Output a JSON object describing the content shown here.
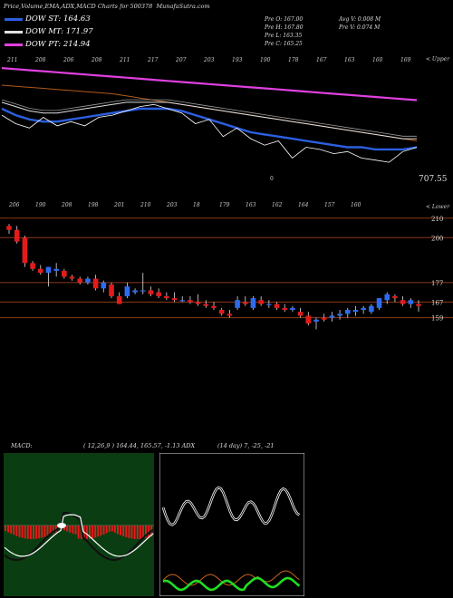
{
  "title": "Price,Volume,EMA,ADX,MACD Charts for 500378",
  "site": "MunafaSutra.com",
  "legend": [
    {
      "label": "DOW ST: 164.63",
      "color": "#2c5fe0"
    },
    {
      "label": "DOW MT: 171.97",
      "color": "#e0e0e0"
    },
    {
      "label": "DOW PT: 214.94",
      "color": "#e040e0"
    }
  ],
  "stats": {
    "prev_open": "Pre   O: 167.00",
    "prev_high": "Pre   H: 167.80",
    "prev_low": "Pre   L: 163.35",
    "prev_close": "Pre   C: 165.25",
    "avg_vol": "Avg V: 0.008   M",
    "prev_vol": "Pre   V: 0.074   M"
  },
  "panel_labels": {
    "upper": "< Upper",
    "lower": "< Lower"
  },
  "ema_value_label": "707.55",
  "ema_top_numbers": [
    "211",
    "208",
    "206",
    "208",
    "211",
    "217",
    "207",
    "203",
    "193",
    "190",
    "178",
    "167",
    "163",
    "160",
    "169"
  ],
  "ema_low_number": "0",
  "price_top_numbers": [
    "206",
    "190",
    "208",
    "198",
    "201",
    "210",
    "203",
    "18",
    "179",
    "163",
    "162",
    "164",
    "157",
    "160"
  ],
  "price_levels": [
    {
      "label": "210",
      "value": 210
    },
    {
      "label": "200",
      "value": 200
    },
    {
      "label": "177",
      "value": 177
    },
    {
      "label": "167",
      "value": 167
    },
    {
      "label": "159",
      "value": 159
    }
  ],
  "indicators": {
    "macd_label": "MACD:",
    "macd_params": "( 12,26,9 ) 164.44,  165.57,  -1.13 ADX",
    "adx_params": "(14  day) 7,  -25,  -21"
  },
  "colors": {
    "up": "#2f6bf0",
    "down": "#e31b1b",
    "dow_st": "#2c5fe0",
    "dow_mt": "#e0e0e0",
    "dow_pt": "#e040e0",
    "ema_brown": "#b05a1a",
    "level_line": "#8b3a1a",
    "macd_bg": "#0a3d12",
    "adx_green": "#22dd22",
    "adx_orange": "#c8641a"
  },
  "chart_data": {
    "type": "candlestick",
    "ylim": [
      150,
      215
    ],
    "candles": [
      [
        206,
        207,
        202,
        204
      ],
      [
        204,
        206,
        197,
        198
      ],
      [
        200,
        201,
        185,
        187
      ],
      [
        187,
        188,
        183,
        184
      ],
      [
        184,
        186,
        181,
        182
      ],
      [
        182,
        185,
        175,
        185
      ],
      [
        183,
        187,
        180,
        184
      ],
      [
        183,
        184,
        179,
        180
      ],
      [
        180,
        181,
        178,
        179
      ],
      [
        179,
        180,
        176,
        177
      ],
      [
        177,
        180,
        176,
        179
      ],
      [
        179,
        181,
        173,
        174
      ],
      [
        174,
        178,
        172,
        177
      ],
      [
        176,
        177,
        169,
        170
      ],
      [
        170,
        172,
        166,
        166
      ],
      [
        170,
        177,
        169,
        175
      ],
      [
        172,
        174,
        171,
        173
      ],
      [
        173,
        182,
        171,
        173
      ],
      [
        173,
        175,
        170,
        171
      ],
      [
        172,
        174,
        169,
        170
      ],
      [
        170,
        172,
        168,
        169
      ],
      [
        169,
        172,
        167,
        168
      ],
      [
        168,
        170,
        167,
        168
      ],
      [
        168,
        170,
        166,
        167
      ],
      [
        167,
        171,
        165,
        166
      ],
      [
        166,
        168,
        164,
        165
      ],
      [
        165,
        167,
        163,
        164
      ],
      [
        163,
        164,
        160,
        161
      ],
      [
        161,
        163,
        159,
        160
      ],
      [
        164,
        170,
        163,
        168
      ],
      [
        167,
        170,
        165,
        166
      ],
      [
        164,
        170,
        163,
        169
      ],
      [
        168,
        170,
        165,
        166
      ],
      [
        166,
        168,
        164,
        166
      ],
      [
        166,
        167,
        163,
        164
      ],
      [
        164,
        166,
        162,
        163
      ],
      [
        163,
        165,
        162,
        164
      ],
      [
        162,
        164,
        159,
        160
      ],
      [
        160,
        162,
        155,
        156
      ],
      [
        157,
        159,
        153,
        158
      ],
      [
        159,
        161,
        157,
        158
      ],
      [
        159,
        162,
        157,
        160
      ],
      [
        160,
        163,
        158,
        161
      ],
      [
        161,
        164,
        159,
        163
      ],
      [
        162,
        165,
        160,
        163
      ],
      [
        163,
        165,
        161,
        164
      ],
      [
        162,
        166,
        161,
        165
      ],
      [
        164,
        169,
        163,
        169
      ],
      [
        168,
        172,
        166,
        171
      ],
      [
        170,
        171,
        167,
        169
      ],
      [
        168,
        170,
        165,
        166
      ],
      [
        166,
        169,
        164,
        168
      ],
      [
        166,
        168,
        162,
        165
      ]
    ],
    "ema_bands": {
      "pink": [
        212,
        211.5,
        211,
        210.5,
        210,
        209.5,
        209,
        208.5,
        208,
        207.5,
        207,
        206.5,
        206,
        205.5,
        205,
        204.5,
        204,
        203.5,
        203,
        202.5,
        202,
        201.5,
        201,
        200.5,
        200,
        199.5,
        199,
        198.5,
        198,
        197.5,
        197
      ],
      "brown": [
        204,
        203.5,
        203,
        202.5,
        202,
        201.5,
        201,
        200.5,
        200,
        199,
        198,
        197,
        196,
        195,
        194,
        193,
        192,
        191,
        190,
        189,
        188,
        187,
        186,
        185,
        184,
        183,
        182,
        181,
        180,
        179,
        178
      ],
      "white": [
        196,
        194,
        192,
        191,
        191,
        192,
        193,
        194,
        195,
        196,
        196,
        196,
        196,
        195,
        194,
        193,
        192,
        191,
        190,
        189,
        188,
        187,
        186,
        185,
        184,
        183,
        182,
        181,
        180,
        179,
        179
      ],
      "blue": [
        193,
        190,
        188,
        187,
        187,
        188,
        189,
        190,
        191,
        192,
        193,
        193,
        193,
        192,
        190,
        188,
        186,
        184,
        182,
        181,
        180,
        179,
        178,
        177,
        176,
        175,
        175,
        174,
        174,
        174,
        175
      ],
      "price": [
        190,
        186,
        184,
        189,
        185,
        187,
        185,
        189,
        190,
        192,
        194,
        195,
        193,
        191,
        186,
        188,
        180,
        184,
        179,
        176,
        178,
        170,
        175,
        174,
        172,
        173,
        170,
        169,
        168,
        173,
        175
      ]
    }
  }
}
